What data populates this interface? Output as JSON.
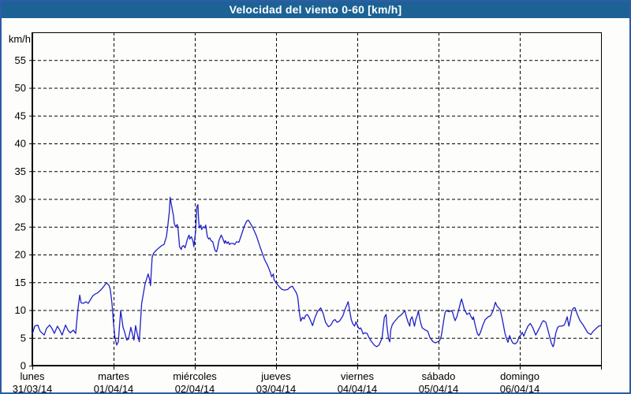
{
  "window": {
    "title": "Velocidad del viento 0-60 [km/h]",
    "colors": {
      "titlebar": "#1d6295",
      "border": "#2d5ca6",
      "background": "#fdfdfb",
      "axis": "#000000",
      "line": "#2020c8"
    }
  },
  "chart_data": {
    "type": "line",
    "title": "Velocidad del viento 0-60 [km/h]",
    "ylabel": "km/h",
    "xlabel": "",
    "ylim": [
      0,
      60
    ],
    "ytick_interval": 5,
    "ytick_labels": [
      "0",
      "5",
      "10",
      "15",
      "20",
      "25",
      "30",
      "35",
      "40",
      "45",
      "50",
      "55"
    ],
    "grid": {
      "horizontal": "dashed",
      "vertical": "dashed-per-day"
    },
    "legend": "none",
    "x_unit": "hours since lunes 31/03/14 00:00",
    "xlim": [
      0,
      168
    ],
    "x_days": [
      {
        "name": "lunes",
        "date": "31/03/14"
      },
      {
        "name": "martes",
        "date": "01/04/14"
      },
      {
        "name": "miércoles",
        "date": "02/04/14"
      },
      {
        "name": "jueves",
        "date": "03/04/14"
      },
      {
        "name": "viernes",
        "date": "04/04/14"
      },
      {
        "name": "sábado",
        "date": "05/04/14"
      },
      {
        "name": "domingo",
        "date": "06/04/14"
      }
    ],
    "series": [
      {
        "name": "velocidad_viento_kmh",
        "color": "#2020c8",
        "points": [
          [
            0,
            5.7
          ],
          [
            0.7,
            7.1
          ],
          [
            1.6,
            7.3
          ],
          [
            2.3,
            6.2
          ],
          [
            3.5,
            5.5
          ],
          [
            4.2,
            6.7
          ],
          [
            5.1,
            7.3
          ],
          [
            5.8,
            6.7
          ],
          [
            6.5,
            5.8
          ],
          [
            7.4,
            7.1
          ],
          [
            8.1,
            6.4
          ],
          [
            8.8,
            5.5
          ],
          [
            9.8,
            7.3
          ],
          [
            10.5,
            6.4
          ],
          [
            11.2,
            5.9
          ],
          [
            12.1,
            6.4
          ],
          [
            12.8,
            5.8
          ],
          [
            13.5,
            10.3
          ],
          [
            14,
            12.7
          ],
          [
            14.4,
            11.3
          ],
          [
            15.1,
            11.2
          ],
          [
            15.8,
            11.5
          ],
          [
            16.5,
            11.2
          ],
          [
            17.2,
            11.9
          ],
          [
            17.9,
            12.6
          ],
          [
            18.6,
            12.9
          ],
          [
            19.3,
            13.1
          ],
          [
            20.2,
            13.6
          ],
          [
            20.9,
            14.1
          ],
          [
            21.9,
            14.9
          ],
          [
            22.6,
            14.5
          ],
          [
            23,
            13.8
          ],
          [
            23.5,
            11.3
          ],
          [
            24,
            7.5
          ],
          [
            24.4,
            5.1
          ],
          [
            24.9,
            3.7
          ],
          [
            25.4,
            4.3
          ],
          [
            26.1,
            9.9
          ],
          [
            26.8,
            6.9
          ],
          [
            27.2,
            6.2
          ],
          [
            27.9,
            4.6
          ],
          [
            28.4,
            4.8
          ],
          [
            29.1,
            6.9
          ],
          [
            30,
            4.6
          ],
          [
            30.5,
            7.2
          ],
          [
            30.9,
            6
          ],
          [
            31.6,
            4.3
          ],
          [
            32.3,
            11.2
          ],
          [
            33.3,
            14.7
          ],
          [
            34.2,
            16.5
          ],
          [
            34.7,
            15.4
          ],
          [
            34.9,
            14.4
          ],
          [
            35.4,
            19.5
          ],
          [
            35.8,
            20.2
          ],
          [
            36.5,
            20.7
          ],
          [
            37.2,
            21.1
          ],
          [
            38.2,
            21.6
          ],
          [
            38.9,
            21.8
          ],
          [
            39.6,
            23.2
          ],
          [
            40,
            25.1
          ],
          [
            40.5,
            27.9
          ],
          [
            40.7,
            30.3
          ],
          [
            41.2,
            28.6
          ],
          [
            41.7,
            26.9
          ],
          [
            41.9,
            25.7
          ],
          [
            42.3,
            25
          ],
          [
            42.8,
            25.4
          ],
          [
            43,
            25
          ],
          [
            43.5,
            21.4
          ],
          [
            44,
            20.9
          ],
          [
            44.2,
            21.4
          ],
          [
            44.7,
            21.6
          ],
          [
            45.1,
            21.2
          ],
          [
            45.4,
            21.8
          ],
          [
            45.8,
            22.8
          ],
          [
            46.3,
            23.5
          ],
          [
            46.5,
            22.8
          ],
          [
            47,
            23.2
          ],
          [
            47.5,
            22.3
          ],
          [
            47.7,
            21.4
          ],
          [
            48.2,
            24
          ],
          [
            48.6,
            28.6
          ],
          [
            48.9,
            29
          ],
          [
            49.1,
            26.5
          ],
          [
            49.3,
            24.8
          ],
          [
            49.8,
            25.3
          ],
          [
            50,
            24.5
          ],
          [
            50.5,
            25
          ],
          [
            51,
            24.8
          ],
          [
            51.2,
            25.3
          ],
          [
            51.7,
            23.2
          ],
          [
            52.1,
            22.8
          ],
          [
            52.4,
            23
          ],
          [
            52.8,
            22.5
          ],
          [
            53.3,
            22.3
          ],
          [
            53.5,
            21.8
          ],
          [
            54,
            20.7
          ],
          [
            54.4,
            20.5
          ],
          [
            54.7,
            21.1
          ],
          [
            55.1,
            22.5
          ],
          [
            55.6,
            23.2
          ],
          [
            55.8,
            23.5
          ],
          [
            56.3,
            22.8
          ],
          [
            56.8,
            22
          ],
          [
            57,
            22.5
          ],
          [
            57.5,
            22
          ],
          [
            57.9,
            22.3
          ],
          [
            58.2,
            21.8
          ],
          [
            58.6,
            22
          ],
          [
            59.3,
            22
          ],
          [
            59.8,
            21.8
          ],
          [
            60.3,
            22.3
          ],
          [
            61,
            22.2
          ],
          [
            61.7,
            23.4
          ],
          [
            62.6,
            25.1
          ],
          [
            63.3,
            26
          ],
          [
            63.8,
            26.2
          ],
          [
            64,
            26
          ],
          [
            64.9,
            25.1
          ],
          [
            65.6,
            24.2
          ],
          [
            66.3,
            23.2
          ],
          [
            67.2,
            21.5
          ],
          [
            67.9,
            20.3
          ],
          [
            68.6,
            19.1
          ],
          [
            69.6,
            17.9
          ],
          [
            70.3,
            16.8
          ],
          [
            70.7,
            16
          ],
          [
            71.2,
            16.5
          ],
          [
            71.4,
            15.5
          ],
          [
            72.1,
            14.8
          ],
          [
            73.1,
            14.1
          ],
          [
            73.8,
            13.7
          ],
          [
            74.5,
            13.6
          ],
          [
            75.4,
            13.7
          ],
          [
            76.1,
            14.1
          ],
          [
            76.8,
            14.3
          ],
          [
            77.3,
            13.8
          ],
          [
            78,
            13.1
          ],
          [
            78.4,
            12.3
          ],
          [
            78.9,
            9.5
          ],
          [
            79.3,
            8
          ],
          [
            79.8,
            8.7
          ],
          [
            80.3,
            8.4
          ],
          [
            80.7,
            9
          ],
          [
            81.2,
            9.2
          ],
          [
            81.7,
            8.8
          ],
          [
            82.4,
            7.8
          ],
          [
            82.8,
            7.2
          ],
          [
            83.5,
            8.7
          ],
          [
            84.2,
            9.7
          ],
          [
            85.2,
            10.4
          ],
          [
            85.9,
            9.4
          ],
          [
            86.6,
            7.8
          ],
          [
            87.5,
            7
          ],
          [
            88.2,
            7.3
          ],
          [
            88.9,
            8.1
          ],
          [
            89.4,
            8.3
          ],
          [
            90,
            7.8
          ],
          [
            90.7,
            8
          ],
          [
            91.7,
            8.9
          ],
          [
            92.4,
            10.2
          ],
          [
            93.3,
            11.5
          ],
          [
            93.8,
            9.7
          ],
          [
            94.2,
            8.3
          ],
          [
            94.7,
            7.5
          ],
          [
            95.2,
            7.1
          ],
          [
            95.6,
            7.9
          ],
          [
            96.1,
            7.1
          ],
          [
            96.6,
            6.6
          ],
          [
            97,
            6.8
          ],
          [
            97.5,
            6.1
          ],
          [
            97.7,
            5.7
          ],
          [
            98.2,
            5.9
          ],
          [
            98.9,
            5.8
          ],
          [
            99.4,
            5.1
          ],
          [
            100.1,
            4.4
          ],
          [
            101,
            3.7
          ],
          [
            101.7,
            3.4
          ],
          [
            102.4,
            3.7
          ],
          [
            103.3,
            4.9
          ],
          [
            104,
            8.7
          ],
          [
            104.5,
            9.2
          ],
          [
            104.7,
            7.5
          ],
          [
            105.2,
            4.9
          ],
          [
            105.6,
            4.3
          ],
          [
            105.9,
            6.5
          ],
          [
            106.3,
            7.3
          ],
          [
            106.8,
            7.8
          ],
          [
            107.5,
            8.3
          ],
          [
            108.2,
            8.8
          ],
          [
            109.1,
            9.2
          ],
          [
            109.8,
            9.7
          ],
          [
            110.1,
            9.8
          ],
          [
            110.5,
            8.8
          ],
          [
            111,
            7.8
          ],
          [
            111.5,
            7.1
          ],
          [
            111.7,
            8.3
          ],
          [
            112.2,
            8.8
          ],
          [
            112.6,
            7.8
          ],
          [
            112.9,
            7.1
          ],
          [
            113.3,
            8.3
          ],
          [
            113.8,
            9.2
          ],
          [
            114,
            9.9
          ],
          [
            114.5,
            8.3
          ],
          [
            114.9,
            7.3
          ],
          [
            115.2,
            6.8
          ],
          [
            116.1,
            6.4
          ],
          [
            116.8,
            6.2
          ],
          [
            117.5,
            5
          ],
          [
            118.4,
            4.3
          ],
          [
            119.1,
            4.1
          ],
          [
            119.8,
            4.3
          ],
          [
            120.3,
            4.5
          ],
          [
            120.8,
            5.3
          ],
          [
            121,
            6
          ],
          [
            121.5,
            8
          ],
          [
            121.9,
            9.5
          ],
          [
            122.2,
            9.9
          ],
          [
            123.1,
            9.7
          ],
          [
            123.8,
            9.9
          ],
          [
            124.2,
            9.5
          ],
          [
            124.5,
            8.8
          ],
          [
            124.9,
            8.1
          ],
          [
            125.4,
            8.8
          ],
          [
            126.1,
            10.4
          ],
          [
            126.6,
            11.6
          ],
          [
            126.8,
            12
          ],
          [
            127.3,
            10.9
          ],
          [
            127.7,
            9.9
          ],
          [
            128,
            9.7
          ],
          [
            128.4,
            9.2
          ],
          [
            129.1,
            9.5
          ],
          [
            129.6,
            8.8
          ],
          [
            130.1,
            8.3
          ],
          [
            130.3,
            8.8
          ],
          [
            130.8,
            7.3
          ],
          [
            131.5,
            5.7
          ],
          [
            131.9,
            5.4
          ],
          [
            132.4,
            6
          ],
          [
            133.1,
            7.3
          ],
          [
            133.8,
            8.3
          ],
          [
            134.7,
            8.8
          ],
          [
            135.4,
            9
          ],
          [
            136.1,
            9.9
          ],
          [
            136.8,
            11.4
          ],
          [
            137.3,
            10.7
          ],
          [
            138.2,
            10.1
          ],
          [
            138.9,
            8.2
          ],
          [
            139.6,
            5.9
          ],
          [
            140.1,
            4.8
          ],
          [
            140.5,
            4.2
          ],
          [
            141,
            5.4
          ],
          [
            141.5,
            4.6
          ],
          [
            141.9,
            4.1
          ],
          [
            142.6,
            3.9
          ],
          [
            143.3,
            4.3
          ],
          [
            143.8,
            5.2
          ],
          [
            144.3,
            5.5
          ],
          [
            144.7,
            6
          ],
          [
            145.2,
            5.3
          ],
          [
            145.4,
            5.7
          ],
          [
            146.4,
            7.1
          ],
          [
            147.1,
            7.6
          ],
          [
            147.8,
            6.9
          ],
          [
            148.7,
            5.5
          ],
          [
            149.9,
            6.9
          ],
          [
            150.6,
            7.8
          ],
          [
            151,
            8.1
          ],
          [
            151.7,
            7.8
          ],
          [
            152.4,
            6.2
          ],
          [
            153.3,
            4.1
          ],
          [
            153.8,
            3.4
          ],
          [
            154,
            3.6
          ],
          [
            154.7,
            6
          ],
          [
            155.2,
            6.9
          ],
          [
            155.7,
            7.1
          ],
          [
            156.4,
            7.1
          ],
          [
            157.1,
            7.3
          ],
          [
            157.5,
            7.8
          ],
          [
            158,
            8.8
          ],
          [
            158.5,
            7.1
          ],
          [
            158.7,
            7.6
          ],
          [
            159.2,
            9.2
          ],
          [
            159.4,
            9.9
          ],
          [
            159.9,
            10.4
          ],
          [
            160.3,
            10.4
          ],
          [
            160.6,
            9.9
          ],
          [
            161,
            9.2
          ],
          [
            161.7,
            8.2
          ],
          [
            162.7,
            7.3
          ],
          [
            163.4,
            6.6
          ],
          [
            164.1,
            5.9
          ],
          [
            165,
            5.6
          ],
          [
            165.7,
            6.2
          ],
          [
            166.4,
            6.6
          ],
          [
            167.3,
            7.1
          ],
          [
            168,
            7.2
          ]
        ]
      }
    ]
  }
}
